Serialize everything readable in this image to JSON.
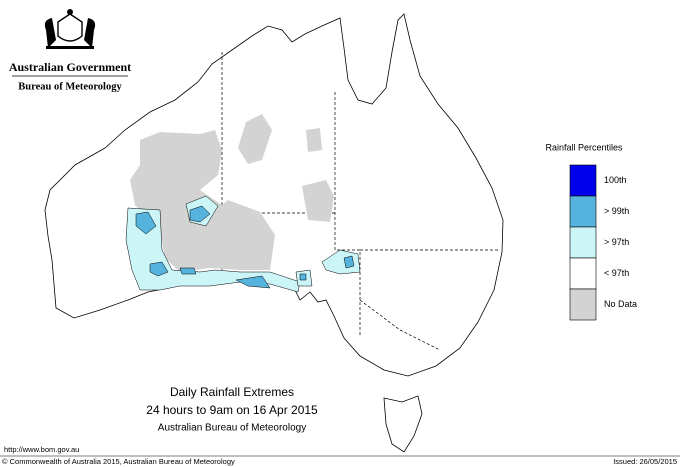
{
  "header": {
    "government": "Australian Government",
    "bureau": "Bureau of Meteorology"
  },
  "legend": {
    "title": "Rainfall Percentiles",
    "items": [
      {
        "label": "100th",
        "color": "#0000ee"
      },
      {
        "label": "> 99th",
        "color": "#55b3dd"
      },
      {
        "label": "> 97th",
        "color": "#ccf5f8"
      },
      {
        "label": "< 97th",
        "color": "#ffffff"
      },
      {
        "label": "No Data",
        "color": "#d3d3d3"
      }
    ]
  },
  "caption": {
    "title": "Daily Rainfall Extremes",
    "period": "24 hours to 9am on 16 Apr 2015",
    "source": "Australian Bureau of Meteorology"
  },
  "footer": {
    "url": "http://www.bom.gov.au",
    "copyright": "© Commonwealth of Australia 2015, Australian Bureau of Meteorology",
    "issued": "Issued: 26/05/2015"
  }
}
